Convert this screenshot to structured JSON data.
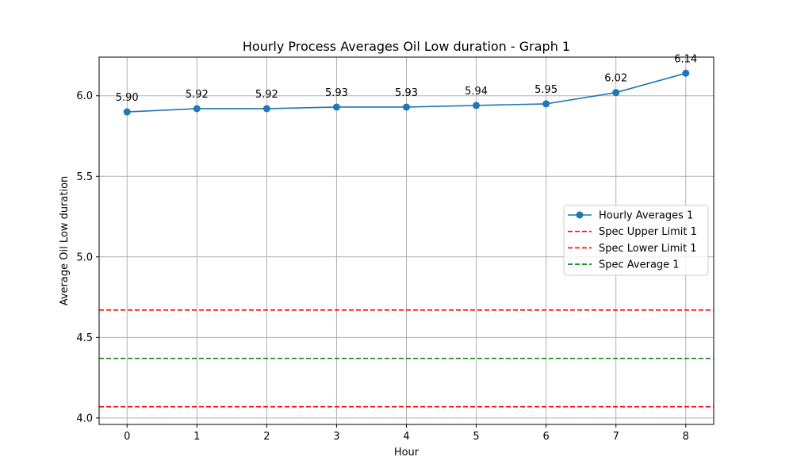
{
  "chart_data": {
    "type": "line",
    "title": "Hourly Process Averages Oil Low duration - Graph 1",
    "xlabel": "Hour",
    "ylabel": "Average Oil Low duration",
    "x": [
      0,
      1,
      2,
      3,
      4,
      5,
      6,
      7,
      8
    ],
    "xlim": [
      -0.4,
      8.4
    ],
    "ylim": [
      3.96,
      6.24
    ],
    "x_ticks": [
      0,
      1,
      2,
      3,
      4,
      5,
      6,
      7,
      8
    ],
    "y_ticks": [
      4.0,
      4.5,
      5.0,
      5.5,
      6.0
    ],
    "x_tick_labels": [
      "0",
      "1",
      "2",
      "3",
      "4",
      "5",
      "6",
      "7",
      "8"
    ],
    "y_tick_labels": [
      "4.0",
      "4.5",
      "5.0",
      "5.5",
      "6.0"
    ],
    "grid": true,
    "legend_position": "right",
    "series": [
      {
        "name": "Hourly Averages 1",
        "kind": "line-marker",
        "color": "#1f77b4",
        "values": [
          5.9,
          5.92,
          5.92,
          5.93,
          5.93,
          5.94,
          5.95,
          6.02,
          6.14
        ],
        "labels": [
          "5.90",
          "5.92",
          "5.92",
          "5.93",
          "5.93",
          "5.94",
          "5.95",
          "6.02",
          "6.14"
        ]
      },
      {
        "name": "Spec Upper Limit 1",
        "kind": "hline",
        "color": "#ff0000",
        "value": 4.67
      },
      {
        "name": "Spec Lower Limit 1",
        "kind": "hline",
        "color": "#ff0000",
        "value": 4.07
      },
      {
        "name": "Spec Average 1",
        "kind": "hline",
        "color": "#008000",
        "value": 4.37
      }
    ]
  }
}
